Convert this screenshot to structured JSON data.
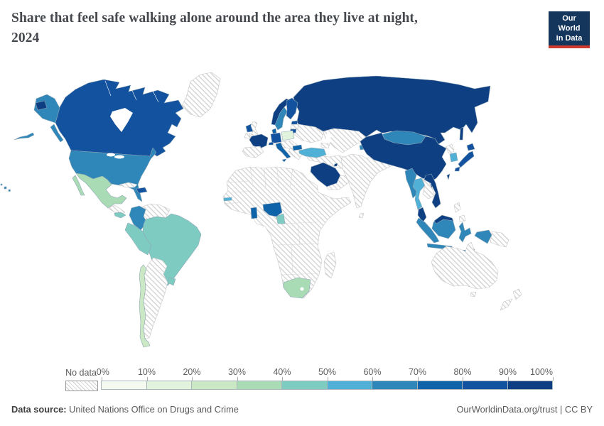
{
  "header": {
    "title": "Share that feel safe walking alone around the area they live at night, 2024",
    "title_line1": "Share that feel safe walking alone around the area they live at night,",
    "title_line2": "2024"
  },
  "logo": {
    "line1": "Our World",
    "line2": "in Data",
    "background": "#14355c",
    "accent": "#ce392e"
  },
  "legend": {
    "no_data_label": "No data",
    "tick_labels": [
      "0%",
      "10%",
      "20%",
      "30%",
      "40%",
      "50%",
      "60%",
      "70%",
      "80%",
      "90%",
      "100%"
    ],
    "bucket_colors": [
      "#f4faf0",
      "#e1f3dc",
      "#cbe8c5",
      "#a9dcb5",
      "#7ecbc2",
      "#51b0d5",
      "#2e86b9",
      "#0f63a8",
      "#12529e",
      "#0e3f82"
    ]
  },
  "footer": {
    "source_label": "Data source:",
    "source_value": "United Nations Office on Drugs and Crime",
    "credit": "OurWorldinData.org/trust | CC BY"
  },
  "chart_data": {
    "type": "choropleth",
    "title": "Share that feel safe walking alone around the area they live at night, 2024",
    "unit": "%",
    "scale_buckets": [
      "0-10%",
      "10-20%",
      "20-30%",
      "30-40%",
      "40-50%",
      "50-60%",
      "60-70%",
      "70-80%",
      "80-90%",
      "90-100%"
    ],
    "legend_position": "bottom",
    "regions": {
      "canada": "80-90%",
      "usa": "60-70%",
      "alaska": "60-70%",
      "hawaii": "60-70%",
      "mexico": "30-40%",
      "dominican-republic": "80-90%",
      "costa-rica-panama": "40-50%",
      "colombia": "60-70%",
      "peru-ecuador": "40-50%",
      "brazil": "40-50%",
      "uruguay": "40-50%",
      "chile": "20-30%",
      "iceland": "80-90%",
      "norway": "90-100%",
      "sweden": "60-70%",
      "finland": "80-90%",
      "estonia": "80-90%",
      "lithuania": "80-90%",
      "denmark": "70-80%",
      "germany": "80-90%",
      "poland": "10-20%",
      "france": "90-100%",
      "switzerland": "80-90%",
      "italy": "70-80%",
      "bulgaria": "70-80%",
      "turkey": "50-60%",
      "russia": "90-100%",
      "saudi-arabia": "90-100%",
      "kuwait": "90-100%",
      "kyrgyzstan": "60-70%",
      "mongolia": "60-70%",
      "china": "90-100%",
      "south-korea": "50-60%",
      "japan": "80-90%",
      "myanmar": "60-70%",
      "thailand": "50-60%",
      "vietnam": "90-100%",
      "malaysia": "90-100%",
      "indonesia": "60-70%",
      "senegal-gambia": "50-60%",
      "ghana": "70-80%",
      "nigeria": "70-80%",
      "cameroon": "40-50%",
      "south-africa": "30-40%"
    }
  },
  "map": {
    "country_border": "#8fa6b5",
    "no_data_border": "#c6c6c6",
    "hatch_line": "#d4d4d4",
    "regions": {
      "greenland": {
        "color": "no-data"
      },
      "canada": {
        "color": "#12529e"
      },
      "alaska": {
        "color": "#2e86b9"
      },
      "chukotka-left": {
        "color": "#0e3f82"
      },
      "usa": {
        "color": "#2e86b9"
      },
      "hawaii": {
        "color": "#2e86b9"
      },
      "mexico": {
        "color": "#a9dcb5"
      },
      "central-america": {
        "color": "no-data"
      },
      "costa-rica-panama": {
        "color": "#7ecbc2"
      },
      "cuba": {
        "color": "no-data"
      },
      "dominican-republic": {
        "color": "#12529e"
      },
      "venezuela-guyanas": {
        "color": "no-data"
      },
      "colombia": {
        "color": "#2e86b9"
      },
      "brazil": {
        "color": "#7ecbc2"
      },
      "peru-ecuador": {
        "color": "#7ecbc2"
      },
      "uruguay": {
        "color": "#7ecbc2"
      },
      "argentina-paraguay": {
        "color": "no-data"
      },
      "chile": {
        "color": "#cbe8c5"
      },
      "africa-nodata": {
        "color": "no-data"
      },
      "madagascar": {
        "color": "no-data"
      },
      "senegal-gambia": {
        "color": "#51b0d5"
      },
      "ghana": {
        "color": "#0f63a8"
      },
      "nigeria": {
        "color": "#0f63a8"
      },
      "cameroon": {
        "color": "#7ecbc2"
      },
      "south-africa": {
        "color": "#a9dcb5"
      },
      "russia": {
        "color": "#0e3f82"
      },
      "sakhalin": {
        "color": "#0e3f82"
      },
      "eastern-europe": {
        "color": "no-data"
      },
      "central-asia": {
        "color": "no-data"
      },
      "caucasus": {
        "color": "no-data"
      },
      "middle-east": {
        "color": "no-data"
      },
      "india": {
        "color": "no-data"
      },
      "sri-lanka": {
        "color": "no-data"
      },
      "iceland": {
        "color": "#12529e"
      },
      "united-kingdom": {
        "color": "no-data"
      },
      "ireland": {
        "color": "no-data"
      },
      "norway": {
        "color": "#0e3f82"
      },
      "sweden": {
        "color": "#2e86b9"
      },
      "finland": {
        "color": "#12529e"
      },
      "estonia": {
        "color": "#12529e"
      },
      "latvia": {
        "color": "no-data"
      },
      "lithuania": {
        "color": "#12529e"
      },
      "denmark": {
        "color": "#0f63a8"
      },
      "germany": {
        "color": "#12529e"
      },
      "poland": {
        "color": "#e1f3dc"
      },
      "central-europe": {
        "color": "no-data"
      },
      "france": {
        "color": "#0e3f82"
      },
      "iberia": {
        "color": "no-data"
      },
      "switzerland": {
        "color": "#12529e"
      },
      "italy": {
        "color": "#0f63a8"
      },
      "balkans-greece": {
        "color": "no-data"
      },
      "bulgaria": {
        "color": "#0f63a8"
      },
      "turkey": {
        "color": "#51b0d5"
      },
      "saudi-arabia": {
        "color": "#0e3f82"
      },
      "kuwait": {
        "color": "#0e3f82"
      },
      "yemen-oman": {
        "color": "no-data"
      },
      "kyrgyzstan": {
        "color": "#2e86b9"
      },
      "mongolia": {
        "color": "#2e86b9"
      },
      "china": {
        "color": "#0e3f82"
      },
      "north-korea": {
        "color": "no-data"
      },
      "south-korea": {
        "color": "#51b0d5"
      },
      "japan": {
        "color": "#12529e"
      },
      "myanmar": {
        "color": "#2e86b9"
      },
      "thailand": {
        "color": "#51b0d5"
      },
      "laos-cambodia": {
        "color": "no-data"
      },
      "vietnam": {
        "color": "#0e3f82"
      },
      "malaysia-peninsula": {
        "color": "#0e3f82"
      },
      "malaysia-borneo": {
        "color": "#0e3f82"
      },
      "indonesia-sumatra": {
        "color": "#2e86b9"
      },
      "indonesia-java": {
        "color": "#2e86b9"
      },
      "indonesia-borneo": {
        "color": "#2e86b9"
      },
      "indonesia-sulawesi": {
        "color": "#2e86b9"
      },
      "indonesia-papua": {
        "color": "#2e86b9"
      },
      "lesser-sunda": {
        "color": "#2e86b9"
      },
      "philippines": {
        "color": "no-data"
      },
      "papua-new-guinea": {
        "color": "no-data"
      },
      "australia": {
        "color": "no-data"
      },
      "tasmania": {
        "color": "no-data"
      },
      "new-zealand": {
        "color": "no-data"
      }
    }
  }
}
